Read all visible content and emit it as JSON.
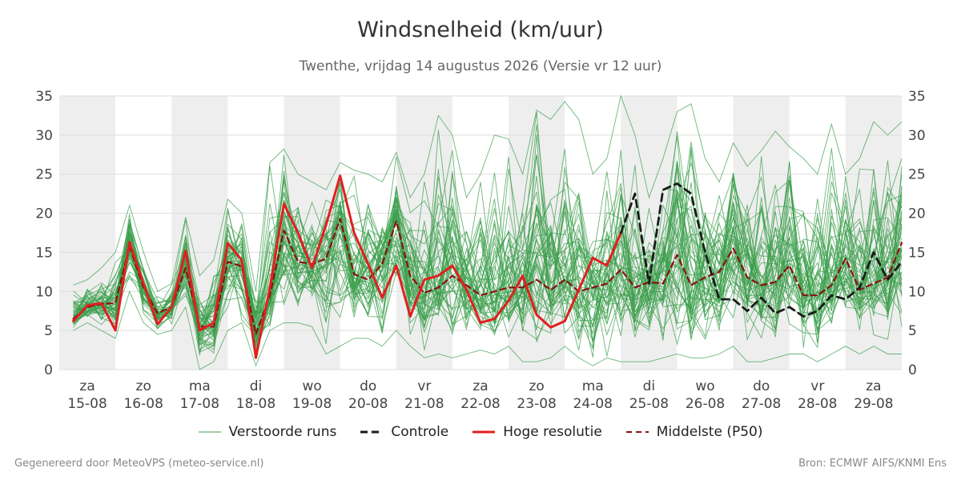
{
  "chart_data": {
    "type": "line",
    "title": "Windsnelheid (km/uur)",
    "subtitle": "Twenthe, vrijdag 14 augustus 2026 (Versie vr 12 uur)",
    "ylim": [
      0,
      35
    ],
    "yticks": [
      0,
      5,
      10,
      15,
      20,
      25,
      30,
      35
    ],
    "xlim": [
      14.5,
      29.5
    ],
    "x_ticks": [
      {
        "x": 15.0,
        "day": "za",
        "date": "15-08"
      },
      {
        "x": 16.0,
        "day": "zo",
        "date": "16-08"
      },
      {
        "x": 17.0,
        "day": "ma",
        "date": "17-08"
      },
      {
        "x": 18.0,
        "day": "di",
        "date": "18-08"
      },
      {
        "x": 19.0,
        "day": "wo",
        "date": "19-08"
      },
      {
        "x": 20.0,
        "day": "do",
        "date": "20-08"
      },
      {
        "x": 21.0,
        "day": "vr",
        "date": "21-08"
      },
      {
        "x": 22.0,
        "day": "za",
        "date": "22-08"
      },
      {
        "x": 23.0,
        "day": "zo",
        "date": "23-08"
      },
      {
        "x": 24.0,
        "day": "ma",
        "date": "24-08"
      },
      {
        "x": 25.0,
        "day": "di",
        "date": "25-08"
      },
      {
        "x": 26.0,
        "day": "wo",
        "date": "26-08"
      },
      {
        "x": 27.0,
        "day": "do",
        "date": "27-08"
      },
      {
        "x": 28.0,
        "day": "vr",
        "date": "28-08"
      },
      {
        "x": 29.0,
        "day": "za",
        "date": "29-08"
      }
    ],
    "shaded_bands": [
      [
        14.5,
        15.5
      ],
      [
        16.5,
        17.5
      ],
      [
        18.5,
        19.5
      ],
      [
        20.5,
        21.5
      ],
      [
        22.5,
        23.5
      ],
      [
        24.5,
        25.5
      ],
      [
        26.5,
        27.5
      ],
      [
        28.5,
        29.5
      ]
    ],
    "grid": true,
    "legend_position": "bottom",
    "colors": {
      "ensemble": "#3a9e4a",
      "control": "#1a1a1a",
      "hires": "#e02020",
      "median": "#8b1010",
      "band": "#eeeeee",
      "grid": "#dddddd"
    },
    "series": [
      {
        "name": "Hoge resolutie",
        "style": "solid",
        "color": "#e02020",
        "x": [
          14.75,
          15.0,
          15.25,
          15.5,
          15.75,
          16.0,
          16.25,
          16.5,
          16.75,
          17.0,
          17.25,
          17.5,
          17.75,
          18.0,
          18.25,
          18.5,
          18.75,
          19.0,
          19.25,
          19.5,
          19.75,
          20.0,
          20.25,
          20.5,
          20.75,
          21.0,
          21.25,
          21.5,
          21.75,
          22.0,
          22.25,
          22.5,
          22.75,
          23.0,
          23.25,
          23.5,
          23.75,
          24.0,
          24.25,
          24.5
        ],
        "y": [
          6.2,
          8.2,
          8.5,
          5.0,
          16.3,
          11.0,
          5.8,
          8.0,
          15.2,
          5.0,
          6.0,
          16.2,
          14.0,
          1.5,
          10.5,
          21.2,
          17.5,
          13.0,
          18.5,
          24.8,
          17.5,
          13.5,
          9.2,
          13.3,
          6.8,
          11.5,
          12.0,
          13.3,
          10.2,
          6.0,
          6.5,
          8.8,
          12.0,
          7.0,
          5.4,
          6.2,
          10.2,
          14.3,
          13.3,
          17.5
        ]
      },
      {
        "name": "Controle",
        "style": "dashed",
        "color": "#1a1a1a",
        "x": [
          24.5,
          24.75,
          25.0,
          25.25,
          25.5,
          25.75,
          26.0,
          26.25,
          26.5,
          26.75,
          27.0,
          27.25,
          27.5,
          27.75,
          28.0,
          28.25,
          28.5,
          28.75,
          29.0,
          29.25,
          29.5
        ],
        "y": [
          17.5,
          22.5,
          11.0,
          23.0,
          23.8,
          22.5,
          15.0,
          9.0,
          9.0,
          7.5,
          9.2,
          7.2,
          8.0,
          6.8,
          7.5,
          9.5,
          9.0,
          10.5,
          15.0,
          11.5,
          13.8
        ]
      },
      {
        "name": "Middelste (P50)",
        "style": "dashed",
        "color": "#8b1010",
        "x": [
          14.75,
          15.0,
          15.25,
          15.5,
          15.75,
          16.0,
          16.25,
          16.5,
          16.75,
          17.0,
          17.25,
          17.5,
          17.75,
          18.0,
          18.25,
          18.5,
          18.75,
          19.0,
          19.25,
          19.5,
          19.75,
          20.0,
          20.25,
          20.5,
          20.75,
          21.0,
          21.25,
          21.5,
          21.75,
          22.0,
          22.25,
          22.5,
          22.75,
          23.0,
          23.25,
          23.5,
          23.75,
          24.0,
          24.25,
          24.5,
          24.75,
          25.0,
          25.25,
          25.5,
          25.75,
          26.0,
          26.25,
          26.5,
          26.75,
          27.0,
          27.25,
          27.5,
          27.75,
          28.0,
          28.25,
          28.5,
          28.75,
          29.0,
          29.25,
          29.5
        ],
        "y": [
          6.5,
          8.0,
          8.4,
          8.5,
          15.8,
          10.5,
          7.2,
          8.0,
          13.0,
          5.5,
          5.5,
          13.8,
          13.2,
          4.5,
          9.5,
          17.8,
          13.8,
          13.5,
          14.2,
          19.3,
          12.2,
          11.5,
          13.5,
          19.0,
          12.0,
          9.8,
          10.5,
          12.0,
          10.8,
          9.5,
          10.0,
          10.5,
          10.5,
          11.5,
          10.2,
          11.5,
          10.0,
          10.5,
          11.0,
          12.8,
          10.5,
          11.2,
          11.0,
          14.7,
          10.8,
          11.8,
          12.5,
          15.5,
          11.8,
          10.8,
          11.2,
          13.3,
          9.5,
          9.5,
          10.8,
          14.2,
          10.2,
          11.0,
          11.8,
          16.2
        ]
      },
      {
        "name": "Verstoorde runs",
        "style": "ensemble",
        "color": "#3a9e4a",
        "members": 50,
        "x": [
          14.75,
          15.0,
          15.25,
          15.5,
          15.75,
          16.0,
          16.25,
          16.5,
          16.75,
          17.0,
          17.25,
          17.5,
          17.75,
          18.0,
          18.25,
          18.5,
          18.75,
          19.0,
          19.25,
          19.5,
          19.75,
          20.0,
          20.25,
          20.5,
          20.75,
          21.0,
          21.25,
          21.5,
          21.75,
          22.0,
          22.25,
          22.5,
          22.75,
          23.0,
          23.25,
          23.5,
          23.75,
          24.0,
          24.25,
          24.5,
          24.75,
          25.0,
          25.25,
          25.5,
          25.75,
          26.0,
          26.25,
          26.5,
          26.75,
          27.0,
          27.25,
          27.5,
          27.75,
          28.0,
          28.25,
          28.5,
          28.75,
          29.0,
          29.25,
          29.5
        ],
        "min": [
          5.0,
          6.0,
          5.0,
          4.0,
          10.0,
          6.0,
          4.5,
          5.0,
          8.0,
          0.0,
          1.0,
          5.0,
          6.0,
          0.5,
          5.0,
          6.0,
          6.0,
          5.5,
          2.0,
          3.0,
          4.0,
          4.0,
          3.0,
          5.0,
          3.0,
          1.5,
          2.0,
          1.5,
          2.0,
          2.5,
          2.0,
          3.0,
          1.0,
          1.0,
          1.5,
          3.0,
          1.5,
          0.5,
          1.5,
          1.0,
          1.0,
          1.0,
          1.5,
          2.0,
          1.5,
          1.5,
          2.0,
          3.0,
          1.0,
          1.0,
          1.5,
          2.0,
          2.0,
          1.0,
          2.0,
          3.0,
          2.0,
          3.0,
          2.0,
          2.0
        ],
        "max": [
          10.8,
          11.5,
          13.0,
          15.0,
          21.0,
          15.0,
          10.0,
          11.0,
          19.5,
          12.0,
          14.0,
          21.8,
          20.0,
          10.0,
          26.5,
          28.2,
          25.0,
          24.0,
          23.0,
          26.5,
          25.5,
          25.0,
          24.0,
          27.8,
          22.0,
          25.0,
          32.5,
          30.0,
          22.0,
          25.0,
          30.0,
          29.5,
          25.0,
          33.2,
          32.0,
          34.3,
          32.0,
          25.0,
          27.0,
          35.0,
          30.0,
          22.0,
          27.0,
          33.0,
          34.0,
          27.0,
          24.0,
          29.0,
          26.0,
          28.0,
          30.5,
          28.5,
          27.0,
          25.0,
          31.4,
          25.0,
          27.0,
          31.7,
          30.0,
          31.7
        ]
      }
    ]
  },
  "legend": [
    {
      "label": "Verstoorde runs",
      "style": "ensemble",
      "color": "#3a9e4a"
    },
    {
      "label": "Controle",
      "style": "dashed",
      "color": "#1a1a1a"
    },
    {
      "label": "Hoge resolutie",
      "style": "solid",
      "color": "#e02020"
    },
    {
      "label": "Middelste (P50)",
      "style": "dashed",
      "color": "#8b1010"
    }
  ],
  "footer": {
    "left": "Gegenereerd door MeteoVPS (meteo-service.nl)",
    "right": "Bron: ECMWF AIFS/KNMI Ens"
  }
}
